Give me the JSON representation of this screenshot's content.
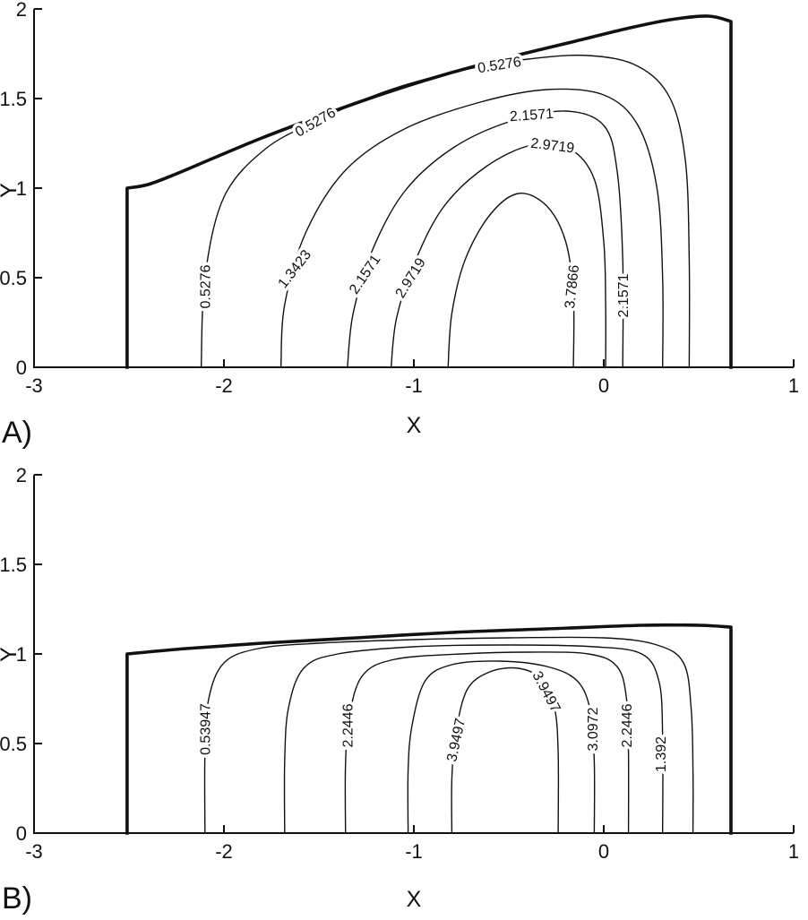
{
  "figure": {
    "background_color": "#ffffff",
    "line_color": "#111111",
    "description": "Two stacked contour plots of a scalar field over a nozzle-like domain"
  },
  "chart_data": [
    {
      "type": "contour",
      "panel_label": "A)",
      "xlabel": "X",
      "ylabel": "Y",
      "xlim": [
        -3,
        1
      ],
      "ylim": [
        0,
        2
      ],
      "x_ticks": [
        {
          "value": -3,
          "label": "-3"
        },
        {
          "value": -2,
          "label": "-2"
        },
        {
          "value": -1,
          "label": "-1"
        },
        {
          "value": 0,
          "label": "0"
        },
        {
          "value": 1,
          "label": "1"
        }
      ],
      "y_ticks": [
        {
          "value": 0,
          "label": "0"
        },
        {
          "value": 0.5,
          "label": "0.5"
        },
        {
          "value": 1,
          "label": "1"
        },
        {
          "value": 1.5,
          "label": "1.5"
        },
        {
          "value": 2,
          "label": "2"
        }
      ],
      "levels": [
        0.5276,
        1.3423,
        2.1571,
        2.9719,
        3.7866
      ],
      "boundary": {
        "left_wall": [
          [
            -2.51,
            0
          ],
          [
            -2.51,
            1.0
          ]
        ],
        "top": [
          [
            -2.51,
            1.0
          ],
          [
            -2.4,
            1.02
          ],
          [
            -2.25,
            1.08
          ],
          [
            -2.05,
            1.17
          ],
          [
            -1.8,
            1.28
          ],
          [
            -1.5,
            1.4
          ],
          [
            -1.18,
            1.52
          ],
          [
            -0.85,
            1.63
          ],
          [
            -0.5,
            1.73
          ],
          [
            -0.15,
            1.82
          ],
          [
            0.12,
            1.89
          ],
          [
            0.35,
            1.94
          ],
          [
            0.55,
            1.96
          ],
          [
            0.67,
            1.93
          ]
        ],
        "right_wall": [
          [
            0.67,
            1.93
          ],
          [
            0.67,
            0
          ]
        ]
      },
      "contours": [
        {
          "level": 0.5276,
          "label": "0.5276",
          "points": [
            [
              -2.12,
              0
            ],
            [
              -2.1,
              0.5
            ],
            [
              -2.0,
              0.95
            ],
            [
              -1.78,
              1.22
            ],
            [
              -1.5,
              1.38
            ],
            [
              -1.15,
              1.54
            ],
            [
              -0.78,
              1.65
            ],
            [
              -0.4,
              1.72
            ],
            [
              -0.08,
              1.74
            ],
            [
              0.18,
              1.68
            ],
            [
              0.35,
              1.5
            ],
            [
              0.43,
              1.15
            ],
            [
              0.45,
              0.6
            ],
            [
              0.45,
              0
            ]
          ],
          "labels": [
            {
              "x": -2.1,
              "y": 0.45,
              "rot": -90
            },
            {
              "x": -1.52,
              "y": 1.37,
              "rot": -30
            },
            {
              "x": -0.55,
              "y": 1.69,
              "rot": -9
            }
          ]
        },
        {
          "level": 1.3423,
          "label": "1.3423",
          "points": [
            [
              -1.7,
              0
            ],
            [
              -1.68,
              0.35
            ],
            [
              -1.57,
              0.75
            ],
            [
              -1.36,
              1.1
            ],
            [
              -1.05,
              1.33
            ],
            [
              -0.65,
              1.48
            ],
            [
              -0.3,
              1.55
            ],
            [
              0.0,
              1.52
            ],
            [
              0.18,
              1.35
            ],
            [
              0.28,
              1.0
            ],
            [
              0.31,
              0.5
            ],
            [
              0.31,
              0
            ]
          ],
          "labels": [
            {
              "x": -1.63,
              "y": 0.55,
              "rot": -52
            }
          ]
        },
        {
          "level": 2.1571,
          "label": "2.1571",
          "points": [
            [
              -1.35,
              0
            ],
            [
              -1.32,
              0.3
            ],
            [
              -1.22,
              0.65
            ],
            [
              -1.05,
              0.98
            ],
            [
              -0.8,
              1.22
            ],
            [
              -0.5,
              1.37
            ],
            [
              -0.2,
              1.43
            ],
            [
              0.0,
              1.35
            ],
            [
              0.07,
              1.1
            ],
            [
              0.1,
              0.6
            ],
            [
              0.1,
              0
            ]
          ],
          "labels": [
            {
              "x": -1.26,
              "y": 0.52,
              "rot": -56
            },
            {
              "x": -0.38,
              "y": 1.41,
              "rot": -4
            },
            {
              "x": 0.1,
              "y": 0.4,
              "rot": -90
            }
          ]
        },
        {
          "level": 2.9719,
          "label": "2.9719",
          "points": [
            [
              -1.12,
              0
            ],
            [
              -1.09,
              0.28
            ],
            [
              -0.99,
              0.6
            ],
            [
              -0.84,
              0.9
            ],
            [
              -0.62,
              1.12
            ],
            [
              -0.38,
              1.24
            ],
            [
              -0.18,
              1.22
            ],
            [
              -0.05,
              1.05
            ],
            [
              0.0,
              0.7
            ],
            [
              0.01,
              0.35
            ],
            [
              0.01,
              0
            ]
          ],
          "labels": [
            {
              "x": -1.02,
              "y": 0.5,
              "rot": -58
            },
            {
              "x": -0.27,
              "y": 1.24,
              "rot": 7
            }
          ]
        },
        {
          "level": 3.7866,
          "label": "3.7866",
          "points": [
            [
              -0.82,
              0
            ],
            [
              -0.8,
              0.3
            ],
            [
              -0.73,
              0.6
            ],
            [
              -0.6,
              0.85
            ],
            [
              -0.45,
              0.97
            ],
            [
              -0.3,
              0.9
            ],
            [
              -0.2,
              0.7
            ],
            [
              -0.16,
              0.4
            ],
            [
              -0.16,
              0
            ]
          ],
          "labels": [
            {
              "x": -0.17,
              "y": 0.45,
              "rot": -84
            }
          ]
        }
      ]
    },
    {
      "type": "contour",
      "panel_label": "B)",
      "xlabel": "X",
      "ylabel": "Y",
      "xlim": [
        -3,
        1
      ],
      "ylim": [
        0,
        2
      ],
      "x_ticks": [
        {
          "value": -3,
          "label": "-3"
        },
        {
          "value": -2,
          "label": "-2"
        },
        {
          "value": -1,
          "label": "-1"
        },
        {
          "value": 0,
          "label": "0"
        },
        {
          "value": 1,
          "label": "1"
        }
      ],
      "y_ticks": [
        {
          "value": 0,
          "label": "0"
        },
        {
          "value": 0.5,
          "label": "0.5"
        },
        {
          "value": 1,
          "label": "1"
        },
        {
          "value": 1.5,
          "label": "1.5"
        },
        {
          "value": 2,
          "label": "2"
        }
      ],
      "levels": [
        0.53947,
        1.392,
        2.2446,
        3.0972,
        3.9497
      ],
      "boundary": {
        "left_wall": [
          [
            -2.51,
            0
          ],
          [
            -2.51,
            1.0
          ]
        ],
        "top": [
          [
            -2.51,
            1.0
          ],
          [
            -2.2,
            1.03
          ],
          [
            -1.8,
            1.06
          ],
          [
            -1.3,
            1.09
          ],
          [
            -0.8,
            1.12
          ],
          [
            -0.3,
            1.14
          ],
          [
            0.2,
            1.16
          ],
          [
            0.5,
            1.16
          ],
          [
            0.67,
            1.15
          ]
        ],
        "right_wall": [
          [
            0.67,
            1.15
          ],
          [
            0.67,
            0
          ]
        ]
      },
      "contours": [
        {
          "level": 0.53947,
          "label": "0.53947",
          "points": [
            [
              -2.1,
              0
            ],
            [
              -2.1,
              0.45
            ],
            [
              -2.08,
              0.75
            ],
            [
              -2.0,
              0.95
            ],
            [
              -1.82,
              1.03
            ],
            [
              -1.5,
              1.06
            ],
            [
              -1.0,
              1.08
            ],
            [
              -0.5,
              1.09
            ],
            [
              0.0,
              1.09
            ],
            [
              0.28,
              1.05
            ],
            [
              0.42,
              0.95
            ],
            [
              0.46,
              0.7
            ],
            [
              0.47,
              0.35
            ],
            [
              0.47,
              0
            ]
          ],
          "labels": [
            {
              "x": -2.1,
              "y": 0.58,
              "rot": -90
            }
          ]
        },
        {
          "level": 1.392,
          "label": "1.392",
          "points": [
            [
              -1.68,
              0
            ],
            [
              -1.68,
              0.4
            ],
            [
              -1.66,
              0.7
            ],
            [
              -1.58,
              0.92
            ],
            [
              -1.4,
              1.0
            ],
            [
              -1.0,
              1.04
            ],
            [
              -0.5,
              1.05
            ],
            [
              -0.05,
              1.04
            ],
            [
              0.2,
              1.0
            ],
            [
              0.29,
              0.85
            ],
            [
              0.31,
              0.55
            ],
            [
              0.31,
              0
            ]
          ],
          "labels": [
            {
              "x": 0.3,
              "y": 0.44,
              "rot": -90
            }
          ]
        },
        {
          "level": 2.2446,
          "label": "2.2446",
          "points": [
            [
              -1.36,
              0
            ],
            [
              -1.36,
              0.38
            ],
            [
              -1.34,
              0.65
            ],
            [
              -1.27,
              0.88
            ],
            [
              -1.1,
              0.97
            ],
            [
              -0.75,
              1.0
            ],
            [
              -0.4,
              1.01
            ],
            [
              -0.08,
              1.0
            ],
            [
              0.07,
              0.93
            ],
            [
              0.12,
              0.75
            ],
            [
              0.13,
              0.45
            ],
            [
              0.13,
              0
            ]
          ],
          "labels": [
            {
              "x": -1.35,
              "y": 0.6,
              "rot": -90
            },
            {
              "x": 0.12,
              "y": 0.6,
              "rot": -90
            }
          ]
        },
        {
          "level": 3.0972,
          "label": "3.0972",
          "points": [
            [
              -1.03,
              0
            ],
            [
              -1.03,
              0.35
            ],
            [
              -1.01,
              0.6
            ],
            [
              -0.94,
              0.85
            ],
            [
              -0.8,
              0.94
            ],
            [
              -0.55,
              0.96
            ],
            [
              -0.3,
              0.93
            ],
            [
              -0.14,
              0.85
            ],
            [
              -0.07,
              0.68
            ],
            [
              -0.05,
              0.4
            ],
            [
              -0.05,
              0
            ]
          ],
          "labels": [
            {
              "x": -0.06,
              "y": 0.58,
              "rot": -90
            }
          ]
        },
        {
          "level": 3.9497,
          "label": "3.9497",
          "points": [
            [
              -0.8,
              0
            ],
            [
              -0.8,
              0.3
            ],
            [
              -0.78,
              0.55
            ],
            [
              -0.72,
              0.8
            ],
            [
              -0.6,
              0.9
            ],
            [
              -0.45,
              0.92
            ],
            [
              -0.33,
              0.86
            ],
            [
              -0.26,
              0.7
            ],
            [
              -0.24,
              0.45
            ],
            [
              -0.24,
              0
            ]
          ],
          "labels": [
            {
              "x": -0.78,
              "y": 0.52,
              "rot": -78
            },
            {
              "x": -0.3,
              "y": 0.79,
              "rot": 62
            }
          ]
        }
      ]
    }
  ]
}
